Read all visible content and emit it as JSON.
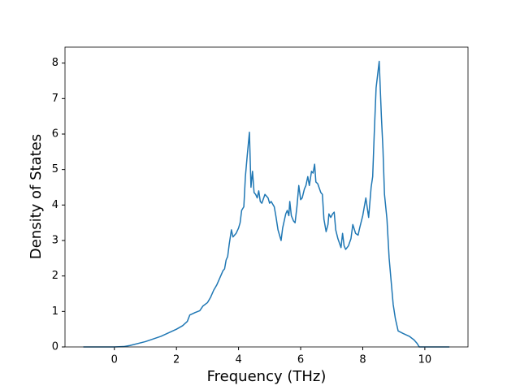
{
  "chart_data": {
    "type": "line",
    "xlabel": "Frequency (THz)",
    "ylabel": "Density of States",
    "xlim": [
      -1.59,
      11.39
    ],
    "ylim": [
      0,
      8.45
    ],
    "xticks": [
      0,
      2,
      4,
      6,
      8,
      10
    ],
    "yticks": [
      0,
      1,
      2,
      3,
      4,
      5,
      6,
      7,
      8
    ],
    "color": "#1f77b4",
    "x": [
      -1.0,
      -0.5,
      0,
      0.3,
      0.5,
      1.0,
      1.5,
      2.0,
      2.2,
      2.35,
      2.43,
      2.6,
      2.75,
      2.85,
      3.0,
      3.1,
      3.2,
      3.3,
      3.4,
      3.5,
      3.55,
      3.6,
      3.65,
      3.7,
      3.77,
      3.82,
      3.92,
      4.0,
      4.05,
      4.1,
      4.17,
      4.22,
      4.28,
      4.35,
      4.4,
      4.45,
      4.5,
      4.55,
      4.6,
      4.65,
      4.7,
      4.75,
      4.85,
      4.95,
      5.0,
      5.05,
      5.15,
      5.2,
      5.27,
      5.37,
      5.42,
      5.52,
      5.57,
      5.62,
      5.65,
      5.7,
      5.77,
      5.82,
      5.88,
      5.94,
      6.0,
      6.05,
      6.12,
      6.17,
      6.23,
      6.28,
      6.35,
      6.4,
      6.45,
      6.49,
      6.55,
      6.65,
      6.7,
      6.75,
      6.82,
      6.88,
      6.91,
      6.97,
      7.03,
      7.08,
      7.13,
      7.2,
      7.3,
      7.35,
      7.4,
      7.45,
      7.54,
      7.62,
      7.68,
      7.77,
      7.85,
      7.9,
      8.0,
      8.1,
      8.19,
      8.27,
      8.32,
      8.37,
      8.43,
      8.53,
      8.6,
      8.65,
      8.7,
      8.78,
      8.85,
      8.9,
      8.98,
      9.05,
      9.14,
      9.3,
      9.5,
      9.65,
      9.75,
      9.82,
      10.1,
      10.79
    ],
    "values": [
      0,
      0,
      0,
      0.01,
      0.04,
      0.15,
      0.3,
      0.5,
      0.6,
      0.72,
      0.9,
      0.97,
      1.02,
      1.15,
      1.25,
      1.4,
      1.6,
      1.75,
      1.95,
      2.15,
      2.2,
      2.45,
      2.55,
      2.9,
      3.3,
      3.1,
      3.2,
      3.35,
      3.5,
      3.85,
      3.95,
      4.8,
      5.4,
      6.05,
      4.5,
      4.95,
      4.35,
      4.3,
      4.2,
      4.4,
      4.1,
      4.05,
      4.3,
      4.2,
      4.05,
      4.1,
      3.95,
      3.7,
      3.3,
      3.0,
      3.35,
      3.75,
      3.85,
      3.7,
      4.1,
      3.7,
      3.55,
      3.5,
      3.95,
      4.55,
      4.15,
      4.2,
      4.45,
      4.55,
      4.8,
      4.55,
      4.95,
      4.9,
      5.15,
      4.65,
      4.6,
      4.35,
      4.3,
      3.6,
      3.25,
      3.45,
      3.75,
      3.65,
      3.75,
      3.8,
      3.3,
      3.05,
      2.8,
      3.2,
      2.85,
      2.75,
      2.85,
      3.05,
      3.45,
      3.2,
      3.15,
      3.35,
      3.7,
      4.2,
      3.65,
      4.5,
      4.8,
      6.0,
      7.3,
      8.05,
      6.5,
      5.6,
      4.3,
      3.6,
      2.5,
      2.0,
      1.2,
      0.8,
      0.45,
      0.38,
      0.3,
      0.2,
      0.1,
      0.0,
      0,
      0
    ]
  }
}
